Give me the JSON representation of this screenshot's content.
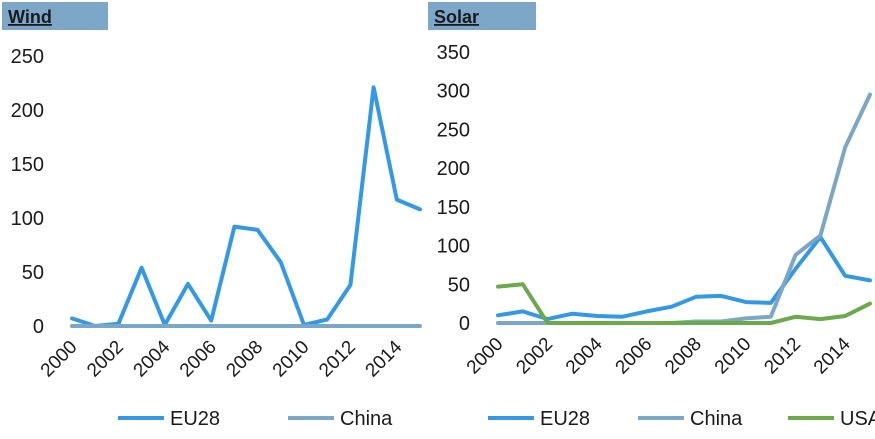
{
  "chart_data": [
    {
      "type": "line",
      "title": "Wind",
      "title_bg": "#7da7c9",
      "ylim": [
        0,
        250
      ],
      "yticks": [
        0,
        50,
        100,
        150,
        200,
        250
      ],
      "xticks": [
        2000,
        2002,
        2004,
        2006,
        2008,
        2010,
        2012,
        2014
      ],
      "x": [
        2000,
        2001,
        2002,
        2003,
        2004,
        2005,
        2006,
        2007,
        2008,
        2009,
        2010,
        2011,
        2012,
        2013,
        2014,
        2015
      ],
      "series": [
        {
          "name": "EU28",
          "color": "#3399e6",
          "values": [
            7,
            0,
            2,
            54,
            1,
            39,
            5,
            92,
            89,
            59,
            1,
            6,
            38,
            221,
            117,
            108
          ]
        },
        {
          "name": "China",
          "color": "#7aa6c8",
          "values": [
            0,
            0,
            0,
            0,
            0,
            0,
            0,
            0,
            0,
            0,
            0,
            0,
            0,
            0,
            0,
            0
          ]
        }
      ],
      "legend": "bottom"
    },
    {
      "type": "line",
      "title": "Solar",
      "title_bg": "#7da7c9",
      "ylim": [
        0,
        350
      ],
      "yticks": [
        0,
        50,
        100,
        150,
        200,
        250,
        300,
        350
      ],
      "xticks": [
        2000,
        2002,
        2004,
        2006,
        2008,
        2010,
        2012,
        2014
      ],
      "x": [
        2000,
        2001,
        2002,
        2003,
        2004,
        2005,
        2006,
        2007,
        2008,
        2009,
        2010,
        2011,
        2012,
        2013,
        2014,
        2015
      ],
      "series": [
        {
          "name": "EU28",
          "color": "#3399e6",
          "values": [
            10,
            15,
            5,
            12,
            9,
            8,
            15,
            21,
            34,
            35,
            27,
            26,
            70,
            111,
            61,
            55
          ]
        },
        {
          "name": "China",
          "color": "#7aa6c8",
          "values": [
            0,
            0,
            0,
            0,
            0,
            0,
            0,
            0,
            2,
            2,
            6,
            8,
            88,
            113,
            227,
            295
          ]
        },
        {
          "name": "USA",
          "color": "#6aaa4a",
          "values": [
            47,
            50,
            0,
            0,
            0,
            0,
            0,
            0,
            0,
            0,
            0,
            0,
            8,
            5,
            9,
            25
          ]
        }
      ],
      "legend": "bottom"
    }
  ]
}
